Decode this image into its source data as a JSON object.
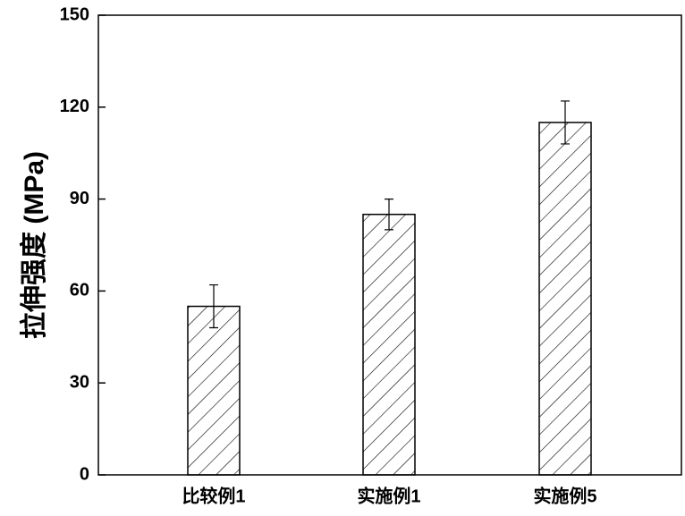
{
  "chart_data": {
    "type": "bar",
    "y_label": "拉伸强度 (MPa)",
    "categories": [
      "比较例1",
      "实施例1",
      "实施例5"
    ],
    "values": [
      55,
      85,
      115
    ],
    "errors": [
      7,
      5,
      7
    ],
    "color": "#000000",
    "ylim": [
      0,
      150
    ],
    "yticks": [
      0,
      30,
      60,
      90,
      120,
      150
    ],
    "grid": false
  }
}
